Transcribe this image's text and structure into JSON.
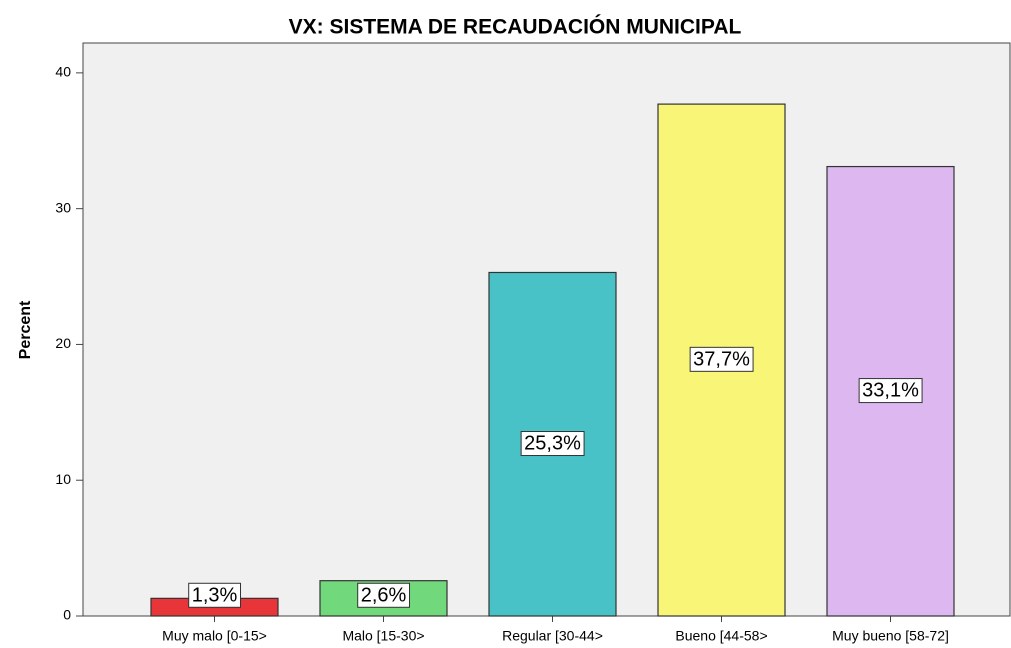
{
  "chart_data": {
    "type": "bar",
    "title": "VX: SISTEMA DE RECAUDACIÓN MUNICIPAL",
    "y_label": "Percent",
    "categories": [
      "Muy malo [0-15>",
      "Malo [15-30>",
      "Regular [30-44>",
      "Bueno [44-58>",
      "Muy bueno [58-72]"
    ],
    "values": [
      1.3,
      2.6,
      25.3,
      37.7,
      33.1
    ],
    "value_labels": [
      "1,3%",
      "2,6%",
      "25,3%",
      "37,7%",
      "33,1%"
    ],
    "colors": [
      "#e8353a",
      "#72d87c",
      "#48c2c6",
      "#f9f577",
      "#ddb8f0"
    ],
    "ylim": [
      0,
      42.2
    ],
    "yticks": [
      0,
      10,
      20,
      30,
      40
    ],
    "grid": false
  }
}
